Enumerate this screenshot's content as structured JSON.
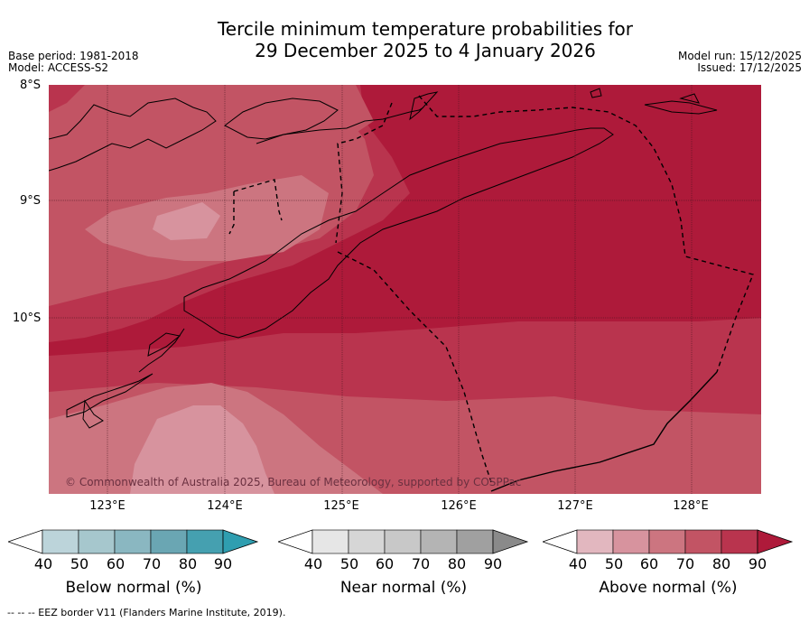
{
  "title": {
    "line1": "Tercile minimum temperature probabilities for",
    "line2": "29 December 2025 to 4 January 2026"
  },
  "meta_left": {
    "base_period": "Base period: 1981-2018",
    "model": "Model: ACCESS-S2"
  },
  "meta_right": {
    "model_run": "Model run: 15/12/2025",
    "issued": "Issued: 17/12/2025"
  },
  "map": {
    "latitude_labels": [
      "8°S",
      "9°S",
      "10°S"
    ],
    "longitude_labels": [
      "123°E",
      "124°E",
      "125°E",
      "126°E",
      "127°E",
      "128°E"
    ],
    "copyright": "© Commonwealth of Australia 2025, Bureau of Meteorology, supported by COSPPac",
    "colors": {
      "above_40": "#e2b7bf",
      "above_50": "#d7939e",
      "above_60": "#cc7580",
      "above_70": "#c25464",
      "above_80": "#b9344e",
      "above_90": "#ae1a3a"
    }
  },
  "colorbars": [
    {
      "label": "Below normal (%)",
      "ticks": [
        "40",
        "50",
        "60",
        "70",
        "80",
        "90"
      ],
      "colors": [
        "#ffffff",
        "#bcd4da",
        "#a6c7cd",
        "#8ab7c1",
        "#6aa6b3",
        "#45a0b0",
        "#2f9eb0"
      ]
    },
    {
      "label": "Near normal (%)",
      "ticks": [
        "40",
        "50",
        "60",
        "70",
        "80",
        "90"
      ],
      "colors": [
        "#ffffff",
        "#e6e6e6",
        "#d6d6d6",
        "#c8c8c8",
        "#b4b4b4",
        "#a0a0a0",
        "#8a8a8a"
      ]
    },
    {
      "label": "Above normal (%)",
      "ticks": [
        "40",
        "50",
        "60",
        "70",
        "80",
        "90"
      ],
      "colors": [
        "#ffffff",
        "#e2b7bf",
        "#d7939e",
        "#cc7580",
        "#c25464",
        "#b9344e",
        "#ae1a3a"
      ]
    }
  ],
  "footer": "--  --  -- EEZ border V11 (Flanders Marine Institute, 2019)."
}
